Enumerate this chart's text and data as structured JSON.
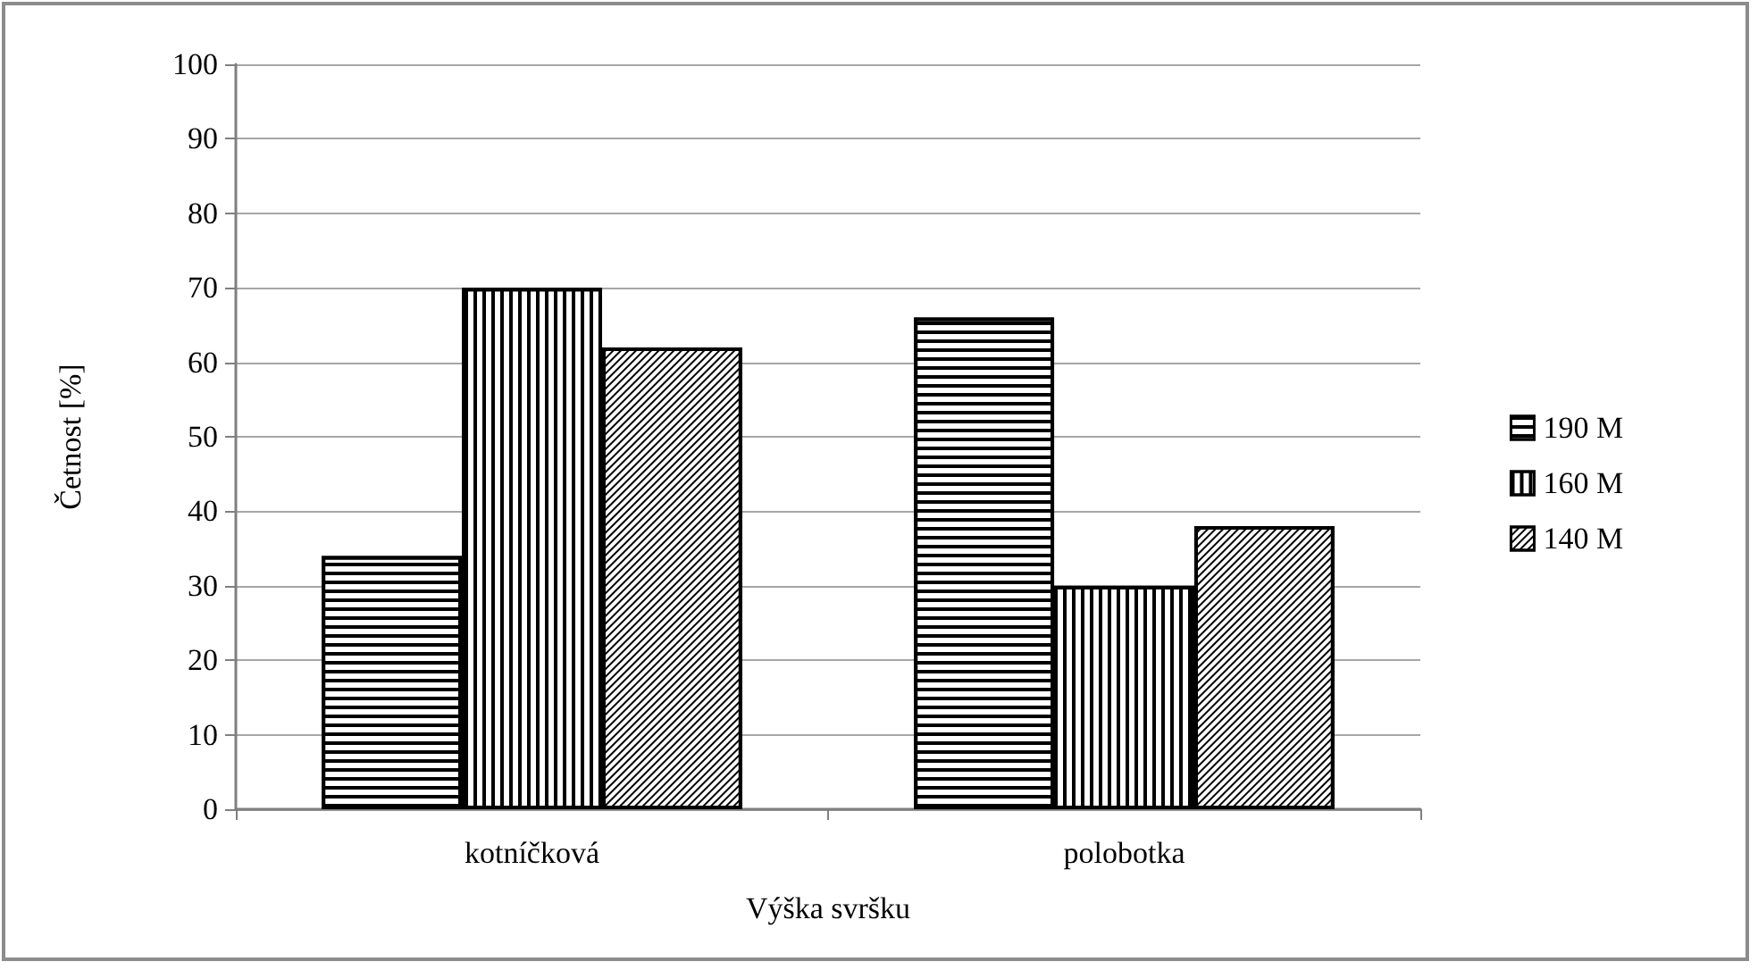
{
  "chart_data": {
    "type": "bar",
    "xlabel": "Výška svršku",
    "ylabel": "Četnost [%]",
    "categories": [
      "kotníčková",
      "polobotka"
    ],
    "series": [
      {
        "name": "190 M",
        "color": "#000000",
        "values": [
          34,
          66
        ]
      },
      {
        "name": "160 M",
        "color": "#000000",
        "values": [
          70,
          30
        ]
      },
      {
        "name": "140 M",
        "color": "#000000",
        "values": [
          62,
          38
        ]
      }
    ],
    "ylim": [
      0,
      100
    ],
    "yticks": [
      0,
      10,
      20,
      30,
      40,
      50,
      60,
      70,
      80,
      90,
      100
    ],
    "grid": "y",
    "legend": "right"
  }
}
